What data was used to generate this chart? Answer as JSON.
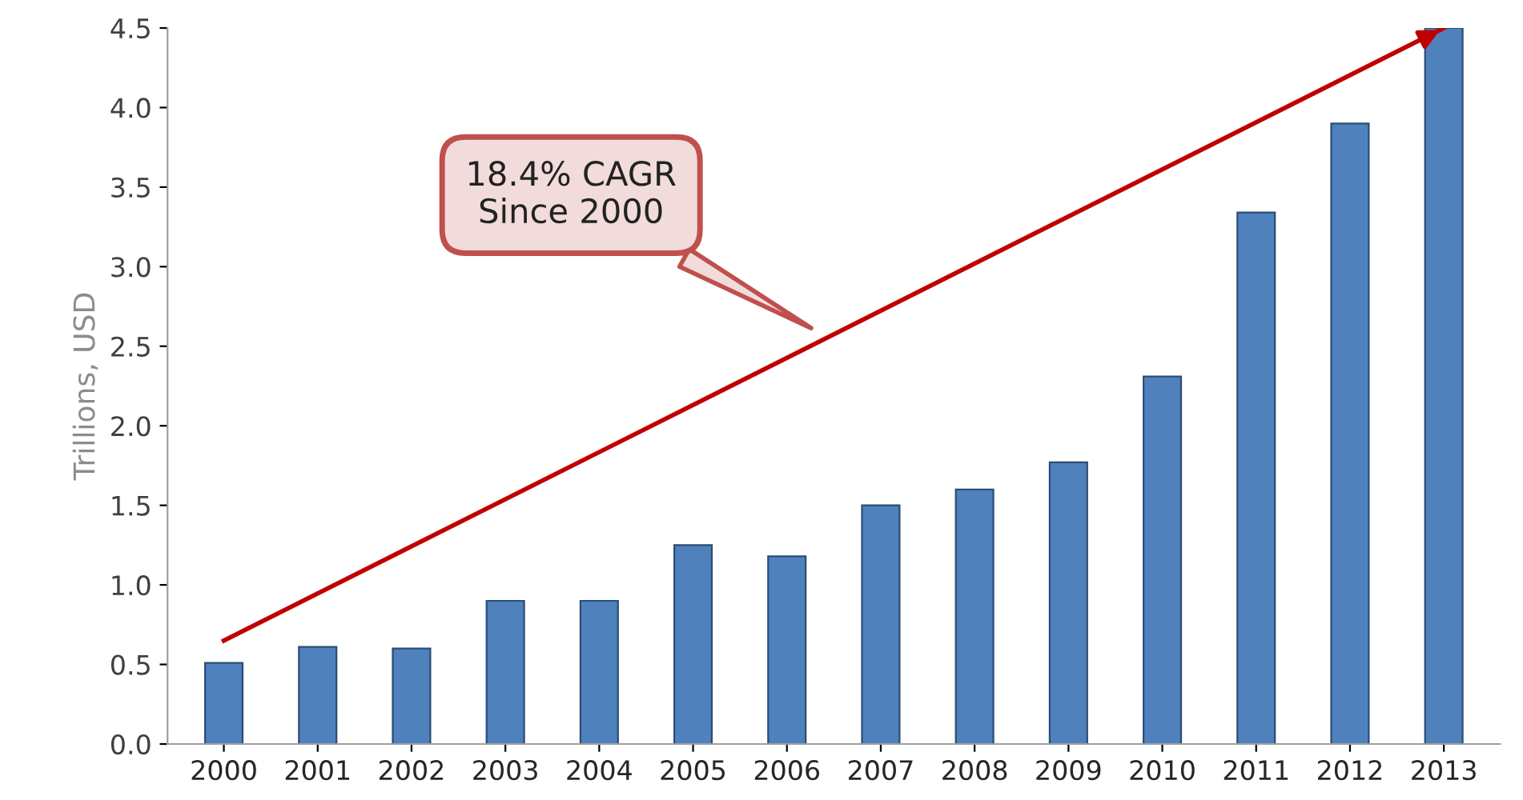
{
  "chart_data": {
    "type": "bar",
    "ylabel": "Trillions, USD",
    "categories": [
      "2000",
      "2001",
      "2002",
      "2003",
      "2004",
      "2005",
      "2006",
      "2007",
      "2008",
      "2009",
      "2010",
      "2011",
      "2012",
      "2013"
    ],
    "series": [
      {
        "type": "bar",
        "color": "#4f81bd",
        "values": [
          0.51,
          0.61,
          0.6,
          0.9,
          0.9,
          1.25,
          1.18,
          1.5,
          1.6,
          1.77,
          2.31,
          3.34,
          3.9,
          4.5
        ]
      },
      {
        "type": "line",
        "color": "#c00000",
        "values": [
          0.65,
          null,
          null,
          null,
          null,
          null,
          null,
          null,
          null,
          null,
          null,
          null,
          null,
          4.5
        ]
      }
    ],
    "ylim": [
      0,
      4.5
    ],
    "yticks": [
      {
        "value": 0,
        "label": "0.0"
      },
      {
        "value": 0.5,
        "label": "0.5"
      },
      {
        "value": 1,
        "label": "1.0"
      },
      {
        "value": 1.5,
        "label": "1.5"
      },
      {
        "value": 2,
        "label": "2.0"
      },
      {
        "value": 2.5,
        "label": "2.5"
      },
      {
        "value": 3,
        "label": "3.0"
      },
      {
        "value": 3.5,
        "label": "3.5"
      },
      {
        "value": 4,
        "label": "4.0"
      },
      {
        "value": 4.5,
        "label": "4.5"
      }
    ],
    "annotations": [
      "18.4% CAGR\nSince 2000"
    ],
    "grid": false,
    "legend": false
  }
}
